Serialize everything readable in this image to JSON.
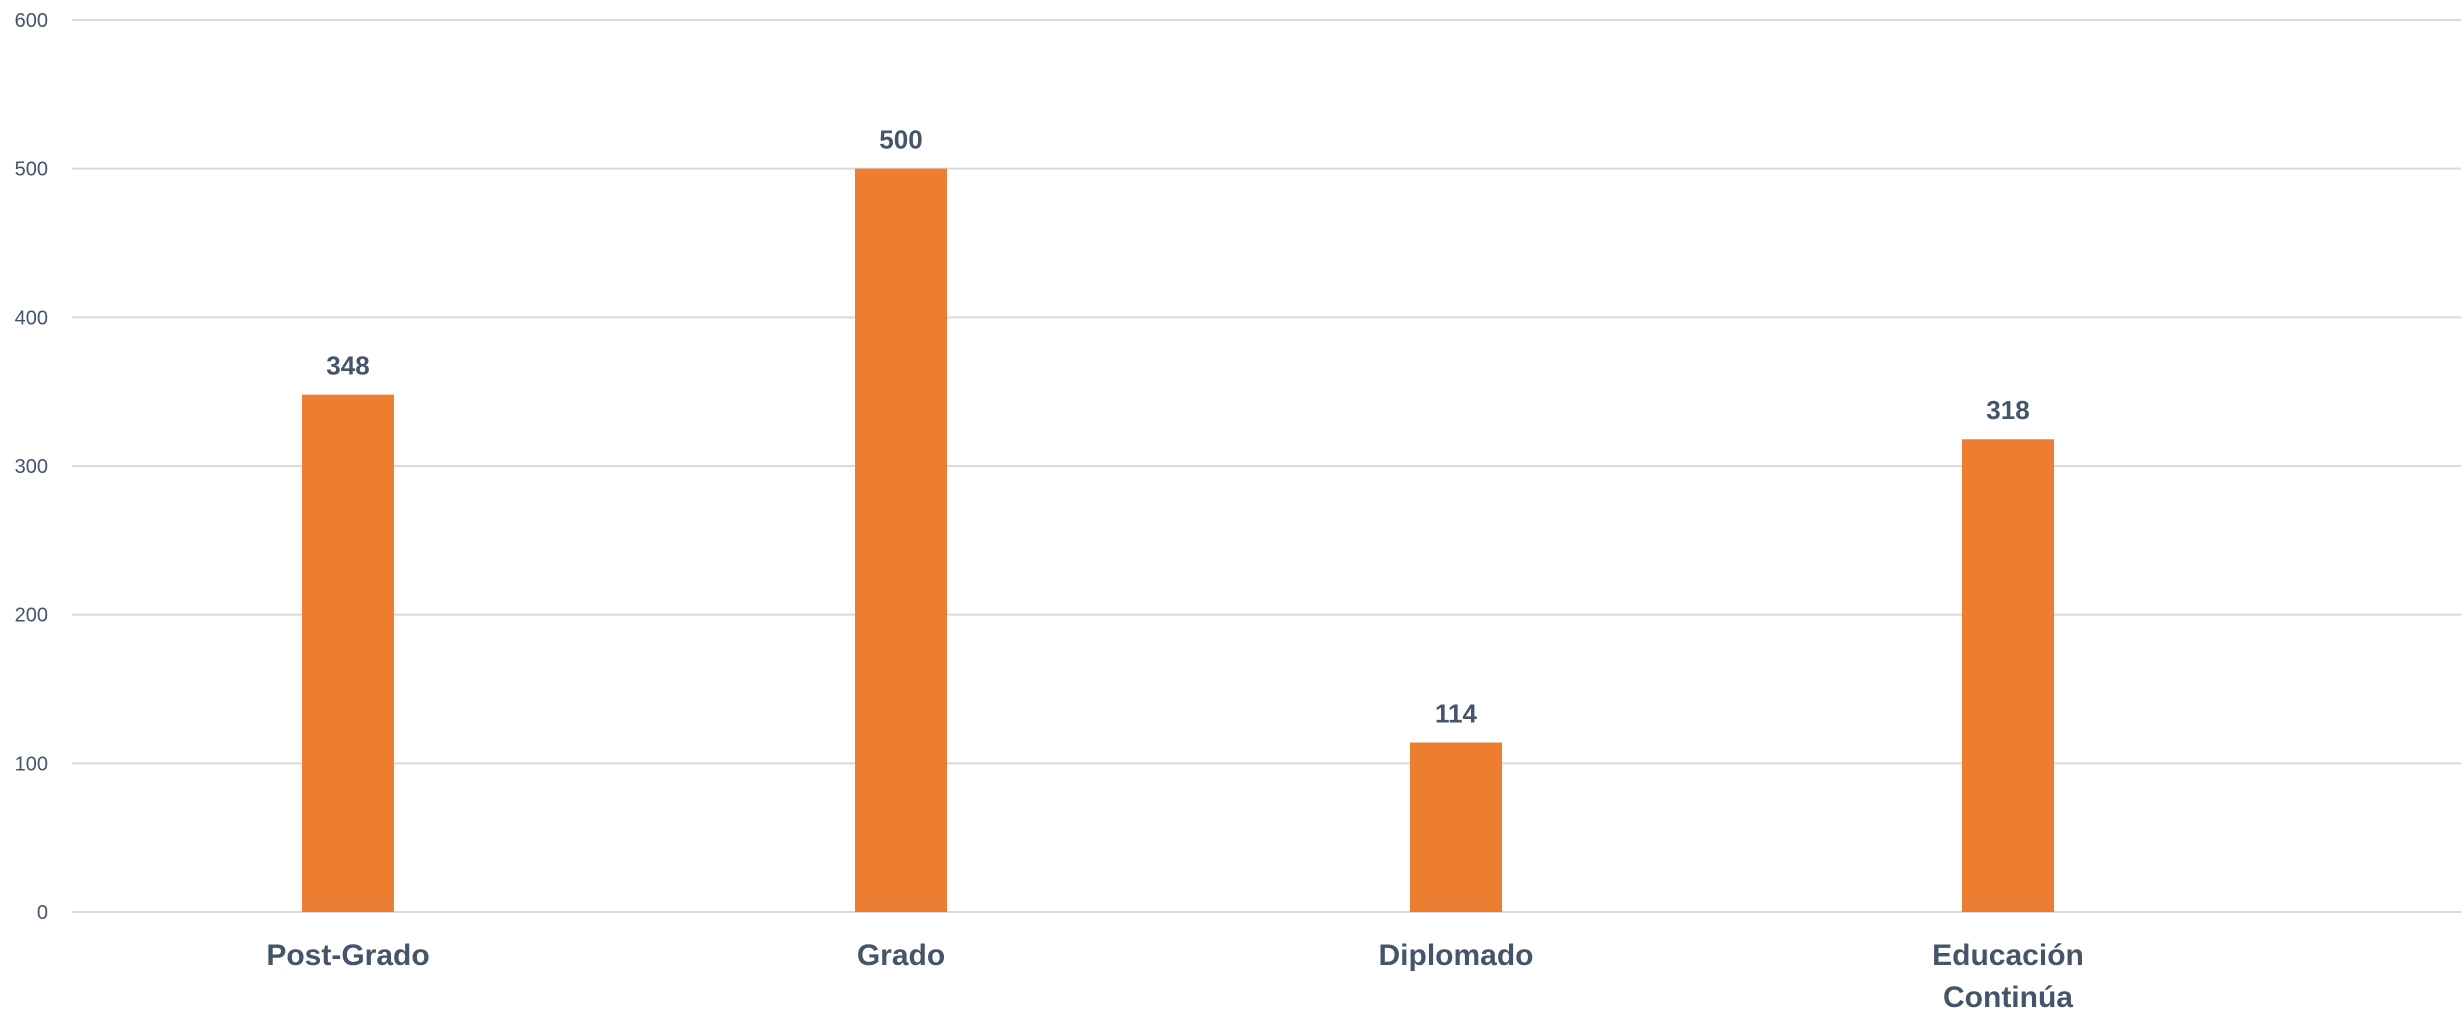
{
  "chart_data": {
    "type": "bar",
    "title": "",
    "xlabel": "",
    "ylabel": "",
    "categories": [
      [
        "Post-Grado"
      ],
      [
        "Grado"
      ],
      [
        "Diplomado"
      ],
      [
        "Educación",
        "Continúa"
      ]
    ],
    "values": [
      348,
      500,
      114,
      318
    ],
    "ylim": [
      0,
      600
    ],
    "yticks": [
      0,
      100,
      200,
      300,
      400,
      500,
      600
    ],
    "grid": true,
    "legend": "none",
    "bar_color": "#ed7d31",
    "text_color": "#44546a",
    "grid_color": "#d9d9d9"
  }
}
